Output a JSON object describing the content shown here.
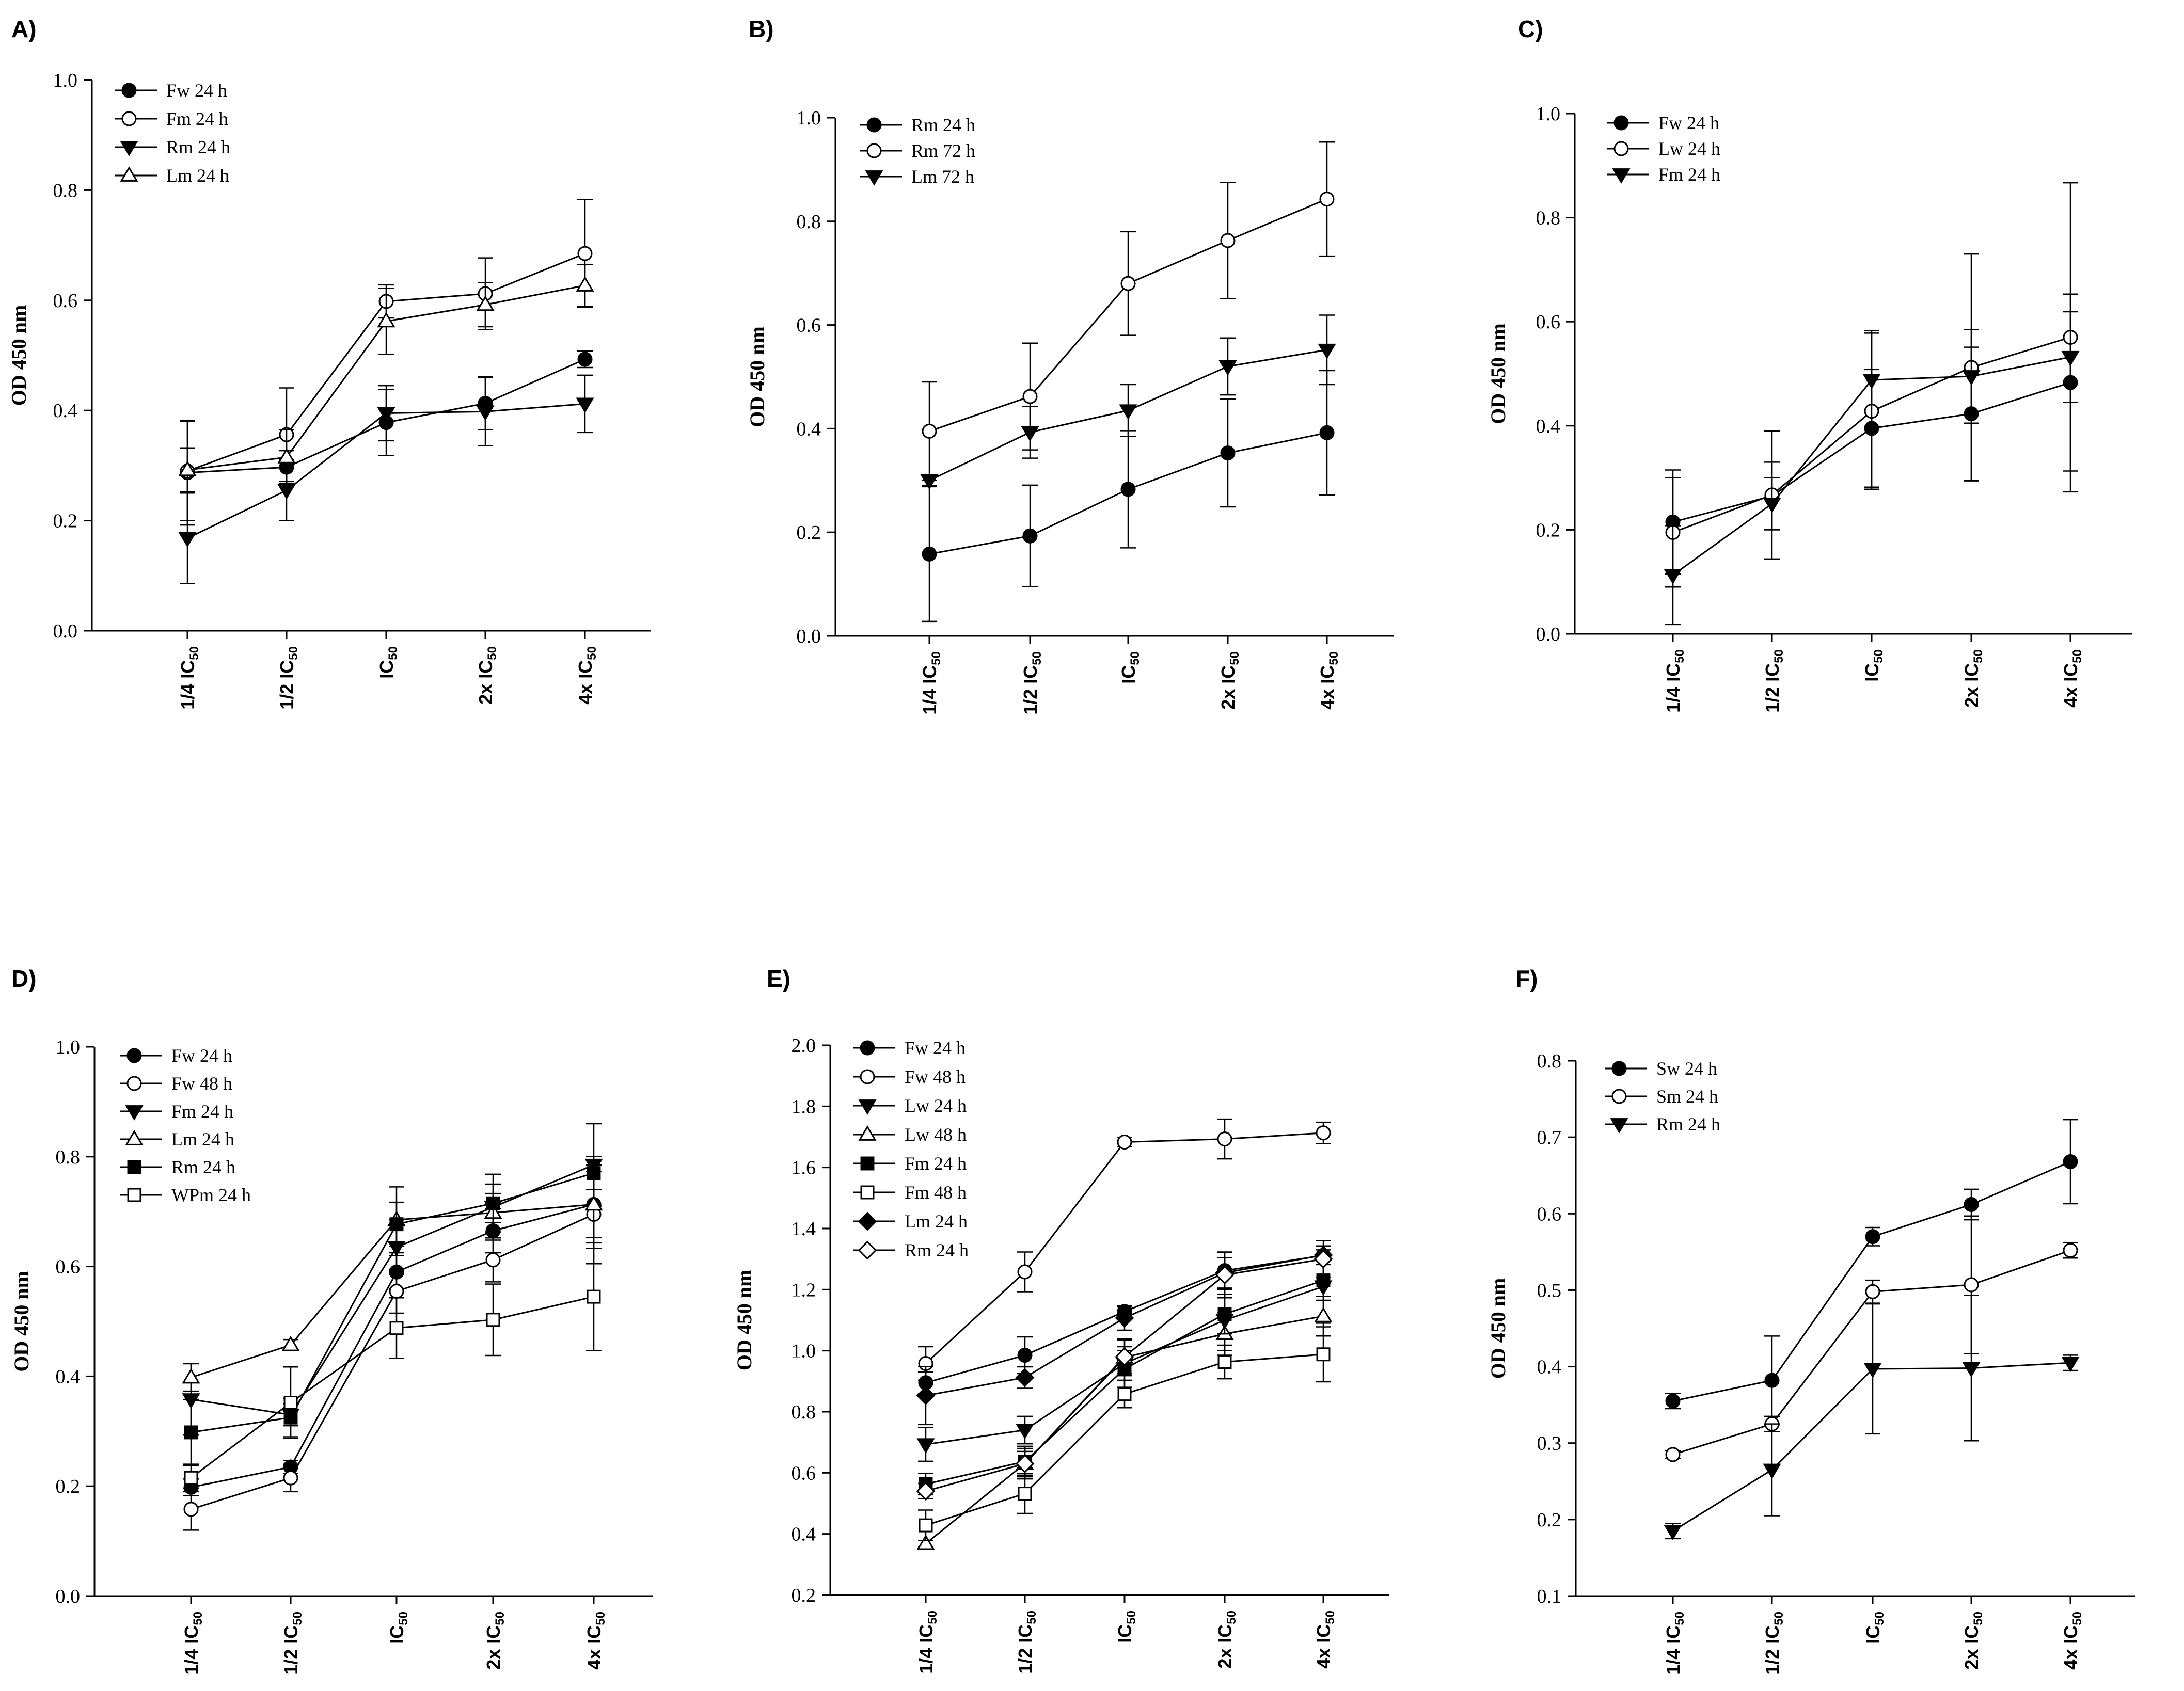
{
  "figure": {
    "ylabel": "OD 450 nm",
    "sub": "50",
    "categories": [
      {
        "main": "1/4 IC",
        "sub": "50"
      },
      {
        "main": "1/2 IC",
        "sub": "50"
      },
      {
        "main": "IC",
        "sub": "50"
      },
      {
        "main": "2x IC",
        "sub": "50"
      },
      {
        "main": "4x IC",
        "sub": "50"
      }
    ]
  },
  "chart_data": [
    {
      "type": "line",
      "panel": "A)",
      "ylabel": "OD 450 nm",
      "ylim": [
        0.0,
        1.0
      ],
      "yticks": [
        "0.0",
        "0.2",
        "0.4",
        "0.6",
        "0.8",
        "1.0"
      ],
      "series": [
        {
          "name": "Fw 24 h",
          "marker": "circle-filled",
          "values": [
            0.287,
            0.297,
            0.378,
            0.413,
            0.493
          ],
          "errors": [
            0.095,
            0.03,
            0.06,
            0.048,
            0.015
          ]
        },
        {
          "name": "Fm 24 h",
          "marker": "circle-open",
          "values": [
            0.29,
            0.356,
            0.598,
            0.612,
            0.685
          ],
          "errors": [
            0.09,
            0.085,
            0.03,
            0.065,
            0.098
          ]
        },
        {
          "name": "Rm 24 h",
          "marker": "triangle-down-filled",
          "values": [
            0.168,
            0.255,
            0.395,
            0.398,
            0.412
          ],
          "errors": [
            0.082,
            0.055,
            0.05,
            0.062,
            0.052
          ]
        },
        {
          "name": "Lm 24 h",
          "marker": "triangle-up-open",
          "values": [
            0.292,
            0.315,
            0.562,
            0.592,
            0.627
          ],
          "errors": [
            0.04,
            0.05,
            0.06,
            0.04,
            0.038
          ]
        }
      ]
    },
    {
      "type": "line",
      "panel": "B)",
      "ylabel": "OD 450 nm",
      "ylim": [
        0.0,
        1.0
      ],
      "yticks": [
        "0.0",
        "0.2",
        "0.4",
        "0.6",
        "0.8",
        "1.0"
      ],
      "series": [
        {
          "name": "Rm 24 h",
          "marker": "circle-filled",
          "values": [
            0.158,
            0.193,
            0.283,
            0.353,
            0.392
          ],
          "errors": [
            0.13,
            0.098,
            0.113,
            0.104,
            0.12
          ]
        },
        {
          "name": "Rm 72 h",
          "marker": "circle-open",
          "values": [
            0.395,
            0.462,
            0.68,
            0.763,
            0.843
          ],
          "errors": [
            0.095,
            0.103,
            0.1,
            0.112,
            0.11
          ]
        },
        {
          "name": "Lm 72 h",
          "marker": "triangle-down-filled",
          "values": [
            0.3,
            0.393,
            0.435,
            0.52,
            0.552
          ],
          "errors": [
            0.01,
            0.05,
            0.05,
            0.055,
            0.067
          ]
        }
      ]
    },
    {
      "type": "line",
      "panel": "C)",
      "ylabel": "OD 450 nm",
      "ylim": [
        0.0,
        1.0
      ],
      "yticks": [
        "0.0",
        "0.2",
        "0.4",
        "0.6",
        "0.8",
        "1.0"
      ],
      "series": [
        {
          "name": "Fw 24 h",
          "marker": "circle-filled",
          "values": [
            0.215,
            0.265,
            0.395,
            0.423,
            0.483
          ],
          "errors": [
            0.1,
            0.065,
            0.113,
            0.128,
            0.17
          ]
        },
        {
          "name": "Lw 24 h",
          "marker": "circle-open",
          "values": [
            0.195,
            0.267,
            0.428,
            0.512,
            0.57
          ],
          "errors": [
            0.105,
            0.123,
            0.15,
            0.218,
            0.297
          ]
        },
        {
          "name": "Fm 24 h",
          "marker": "triangle-down-filled",
          "values": [
            0.113,
            0.25,
            0.488,
            0.495,
            0.532
          ],
          "errors": [
            0.095,
            0.05,
            0.095,
            0.09,
            0.087
          ]
        }
      ]
    },
    {
      "type": "line",
      "panel": "D)",
      "ylabel": "OD 450 nm",
      "ylim": [
        0.0,
        1.0
      ],
      "yticks": [
        "0.0",
        "0.2",
        "0.4",
        "0.6",
        "0.8",
        "1.0"
      ],
      "series": [
        {
          "name": "Fw 24 h",
          "marker": "circle-filled",
          "values": [
            0.198,
            0.235,
            0.59,
            0.665,
            0.713
          ],
          "errors": [
            0.015,
            0.012,
            0.03,
            0.04,
            0.08
          ]
        },
        {
          "name": "Fw 48 h",
          "marker": "circle-open",
          "values": [
            0.158,
            0.215,
            0.555,
            0.612,
            0.695
          ],
          "errors": [
            0.038,
            0.025,
            0.04,
            0.04,
            0.09
          ]
        },
        {
          "name": "Fm 24 h",
          "marker": "triangle-down-filled",
          "values": [
            0.358,
            0.33,
            0.635,
            0.708,
            0.785
          ],
          "errors": [
            0.065,
            0.02,
            0.05,
            0.06,
            0.075
          ]
        },
        {
          "name": "Lm 24 h",
          "marker": "triangle-up-open",
          "values": [
            0.398,
            0.457,
            0.685,
            0.698,
            0.713
          ],
          "errors": [
            0.025,
            0.01,
            0.06,
            0.035,
            0.06
          ]
        },
        {
          "name": "Rm 24 h",
          "marker": "square-filled",
          "values": [
            0.298,
            0.325,
            0.677,
            0.715,
            0.77
          ],
          "errors": [
            0.06,
            0.035,
            0.04,
            0.035,
            0.03
          ]
        },
        {
          "name": "WPm 24 h",
          "marker": "square-open",
          "values": [
            0.215,
            0.352,
            0.488,
            0.503,
            0.545
          ],
          "errors": [
            0.025,
            0.065,
            0.055,
            0.065,
            0.098
          ]
        }
      ]
    },
    {
      "type": "line",
      "panel": "E)",
      "ylabel": "OD 450 nm",
      "ylim": [
        0.2,
        2.0
      ],
      "yticks": [
        "0.2",
        "0.4",
        "0.6",
        "0.8",
        "1.0",
        "1.2",
        "1.4",
        "1.6",
        "1.8",
        "2.0"
      ],
      "series": [
        {
          "name": "Fw 24 h",
          "marker": "circle-filled",
          "values": [
            0.895,
            0.985,
            1.128,
            1.262,
            1.312
          ],
          "errors": [
            0.035,
            0.06,
            0.015,
            0.06,
            0.03
          ]
        },
        {
          "name": "Fw 48 h",
          "marker": "circle-open",
          "values": [
            0.958,
            1.258,
            1.683,
            1.693,
            1.713
          ],
          "errors": [
            0.055,
            0.065,
            0.015,
            0.065,
            0.035
          ]
        },
        {
          "name": "Lw 24 h",
          "marker": "triangle-down-filled",
          "values": [
            0.693,
            0.74,
            0.958,
            1.1,
            1.21
          ],
          "errors": [
            0.055,
            0.045,
            0.055,
            0.1,
            0.12
          ]
        },
        {
          "name": "Lw 48 h",
          "marker": "triangle-up-open",
          "values": [
            0.368,
            0.63,
            0.978,
            1.055,
            1.113
          ],
          "errors": [
            0.01,
            0.05,
            0.06,
            0.07,
            0.065
          ]
        },
        {
          "name": "Fm 24 h",
          "marker": "square-filled",
          "values": [
            0.563,
            0.637,
            0.94,
            1.12,
            1.23
          ],
          "errors": [
            0.035,
            0.05,
            0.06,
            0.065,
            0.065
          ]
        },
        {
          "name": "Fm 48 h",
          "marker": "square-open",
          "values": [
            0.428,
            0.532,
            0.858,
            0.963,
            0.988
          ],
          "errors": [
            0.05,
            0.065,
            0.045,
            0.055,
            0.09
          ]
        },
        {
          "name": "Lm 24 h",
          "marker": "diamond-filled",
          "values": [
            0.853,
            0.912,
            1.107,
            1.255,
            1.313
          ],
          "errors": [
            0.095,
            0.035,
            0.04,
            0.05,
            0.03
          ]
        },
        {
          "name": "Rm 24 h",
          "marker": "diamond-open",
          "values": [
            0.54,
            0.63,
            0.98,
            1.248,
            1.3
          ],
          "errors": [
            0.025,
            0.04,
            0.055,
            0.075,
            0.06
          ]
        }
      ]
    },
    {
      "type": "line",
      "panel": "F)",
      "ylabel": "OD 450 nm",
      "ylim": [
        0.1,
        0.8
      ],
      "yticks": [
        "0.1",
        "0.2",
        "0.3",
        "0.4",
        "0.5",
        "0.6",
        "0.7",
        "0.8"
      ],
      "series": [
        {
          "name": "Sw 24 h",
          "marker": "circle-filled",
          "values": [
            0.355,
            0.382,
            0.57,
            0.612,
            0.668
          ],
          "errors": [
            0.01,
            0.058,
            0.012,
            0.02,
            0.055
          ]
        },
        {
          "name": "Sm 24 h",
          "marker": "circle-open",
          "values": [
            0.285,
            0.325,
            0.498,
            0.507,
            0.552
          ],
          "errors": [
            0.005,
            0.01,
            0.015,
            0.09,
            0.01
          ]
        },
        {
          "name": "Rm 24 h",
          "marker": "triangle-down-filled",
          "values": [
            0.185,
            0.265,
            0.397,
            0.398,
            0.405
          ],
          "errors": [
            0.01,
            0.06,
            0.085,
            0.095,
            0.01
          ]
        }
      ]
    }
  ]
}
